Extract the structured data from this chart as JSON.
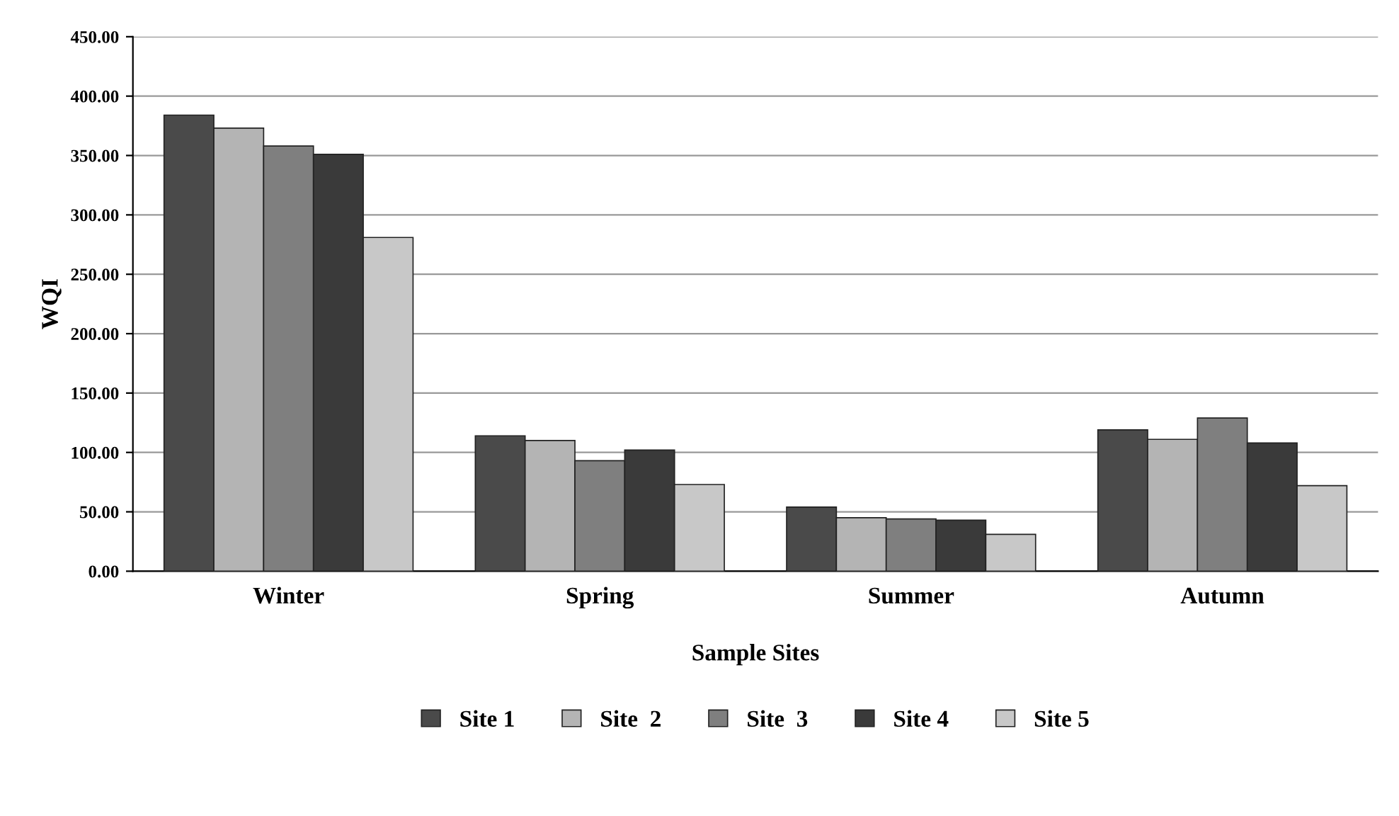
{
  "chart_data": {
    "type": "bar",
    "xlabel": "Sample Sites",
    "ylabel": "WQI",
    "categories": [
      "Winter",
      "Spring",
      "Summer",
      "Autumn"
    ],
    "series": [
      {
        "name": "Site 1",
        "color": "#4a4a4a",
        "values": [
          384,
          114,
          54,
          119
        ]
      },
      {
        "name": "Site  2",
        "color": "#b4b4b4",
        "values": [
          373,
          110,
          45,
          111
        ]
      },
      {
        "name": "Site  3",
        "color": "#7f7f7f",
        "values": [
          358,
          93,
          44,
          129
        ]
      },
      {
        "name": "Site 4",
        "color": "#3a3a3a",
        "values": [
          351,
          102,
          43,
          108
        ]
      },
      {
        "name": "Site 5",
        "color": "#c8c8c8",
        "values": [
          281,
          73,
          31,
          72
        ]
      }
    ],
    "ylim": [
      0,
      450
    ],
    "yticks": [
      {
        "value": 0,
        "label": "0.00"
      },
      {
        "value": 50,
        "label": "50.00"
      },
      {
        "value": 100,
        "label": "100.00"
      },
      {
        "value": 150,
        "label": "150.00"
      },
      {
        "value": 200,
        "label": "200.00"
      },
      {
        "value": 250,
        "label": "250.00"
      },
      {
        "value": 300,
        "label": "300.00"
      },
      {
        "value": 350,
        "label": "350.00"
      },
      {
        "value": 400,
        "label": "400.00"
      },
      {
        "value": 450,
        "label": "450.00"
      }
    ],
    "grid": "y",
    "legend": "bottom"
  }
}
